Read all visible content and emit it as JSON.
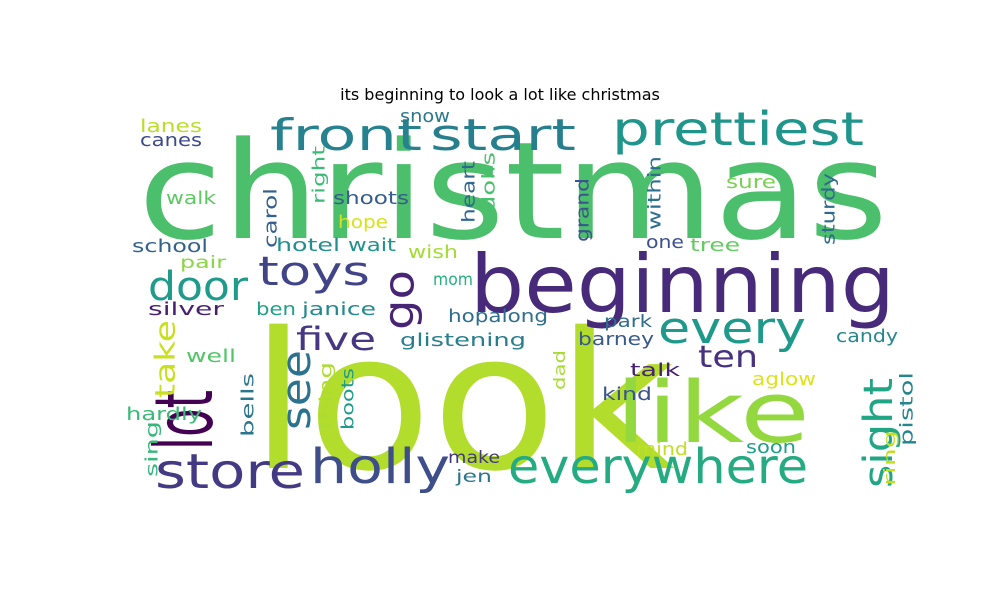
{
  "title": "its beginning to look a lot like christmas",
  "words": [
    {
      "text": "christmas",
      "color": "#4bbf6b"
    },
    {
      "text": "look",
      "color": "#b2dd2c"
    },
    {
      "text": "beginning",
      "color": "#472a7a"
    },
    {
      "text": "like",
      "color": "#94d840"
    },
    {
      "text": "lot",
      "color": "#440154"
    },
    {
      "text": "everywhere",
      "color": "#25ab82"
    },
    {
      "text": "store",
      "color": "#443a83"
    },
    {
      "text": "holly",
      "color": "#3d4e8a"
    },
    {
      "text": "prettiest",
      "color": "#1f958b"
    },
    {
      "text": "front",
      "color": "#26828e"
    },
    {
      "text": "start",
      "color": "#277f8e"
    },
    {
      "text": "every",
      "color": "#1f9a8a"
    },
    {
      "text": "door",
      "color": "#1e9b8a"
    },
    {
      "text": "toys",
      "color": "#414487"
    },
    {
      "text": "go",
      "color": "#482475"
    },
    {
      "text": "see",
      "color": "#2c728e"
    },
    {
      "text": "sight",
      "color": "#21a685"
    },
    {
      "text": "five",
      "color": "#453781"
    },
    {
      "text": "ten",
      "color": "#46327e"
    },
    {
      "text": "take",
      "color": "#c8e020"
    },
    {
      "text": "lanes",
      "color": "#bade28"
    },
    {
      "text": "canes",
      "color": "#3e4989"
    },
    {
      "text": "snow",
      "color": "#2a788e"
    },
    {
      "text": "walk",
      "color": "#5ec962"
    },
    {
      "text": "right",
      "color": "#3bbb75"
    },
    {
      "text": "shoots",
      "color": "#365d8d"
    },
    {
      "text": "hope",
      "color": "#d8e219"
    },
    {
      "text": "heart",
      "color": "#31688e"
    },
    {
      "text": "dolls",
      "color": "#48c16e"
    },
    {
      "text": "grand",
      "color": "#39568c"
    },
    {
      "text": "within",
      "color": "#2d708e"
    },
    {
      "text": "sure",
      "color": "#7ad151"
    },
    {
      "text": "sturdy",
      "color": "#306a8e"
    },
    {
      "text": "school",
      "color": "#33638d"
    },
    {
      "text": "carol",
      "color": "#35608d"
    },
    {
      "text": "hotel",
      "color": "#218f8d"
    },
    {
      "text": "wait",
      "color": "#20928c"
    },
    {
      "text": "wish",
      "color": "#a5db36"
    },
    {
      "text": "one",
      "color": "#3b528b"
    },
    {
      "text": "tree",
      "color": "#63cb5f"
    },
    {
      "text": "pair",
      "color": "#8bd646"
    },
    {
      "text": "mom",
      "color": "#29af7f"
    },
    {
      "text": "silver",
      "color": "#481f70"
    },
    {
      "text": "ben",
      "color": "#1fa088"
    },
    {
      "text": "janice",
      "color": "#23898e"
    },
    {
      "text": "hopalong",
      "color": "#2e6e8e"
    },
    {
      "text": "park",
      "color": "#2f6c8e"
    },
    {
      "text": "glistening",
      "color": "#287d8e"
    },
    {
      "text": "barney",
      "color": "#38598c"
    },
    {
      "text": "candy",
      "color": "#24868e"
    },
    {
      "text": "well",
      "color": "#52c569"
    },
    {
      "text": "talk",
      "color": "#482173"
    },
    {
      "text": "aglow",
      "color": "#dde318"
    },
    {
      "text": "bells",
      "color": "#2b748e"
    },
    {
      "text": "thing",
      "color": "#addc30"
    },
    {
      "text": "boots",
      "color": "#1e9c89"
    },
    {
      "text": "dad",
      "color": "#a8db34"
    },
    {
      "text": "kind",
      "color": "#3a548c"
    },
    {
      "text": "pistol",
      "color": "#25858e"
    },
    {
      "text": "hardly",
      "color": "#3aba76"
    },
    {
      "text": "soon",
      "color": "#1f9e89"
    },
    {
      "text": "ring",
      "color": "#c2df23"
    },
    {
      "text": "mind",
      "color": "#c0df25"
    },
    {
      "text": "sing",
      "color": "#35b779"
    },
    {
      "text": "make",
      "color": "#453882"
    },
    {
      "text": "jen",
      "color": "#2a768e"
    }
  ]
}
